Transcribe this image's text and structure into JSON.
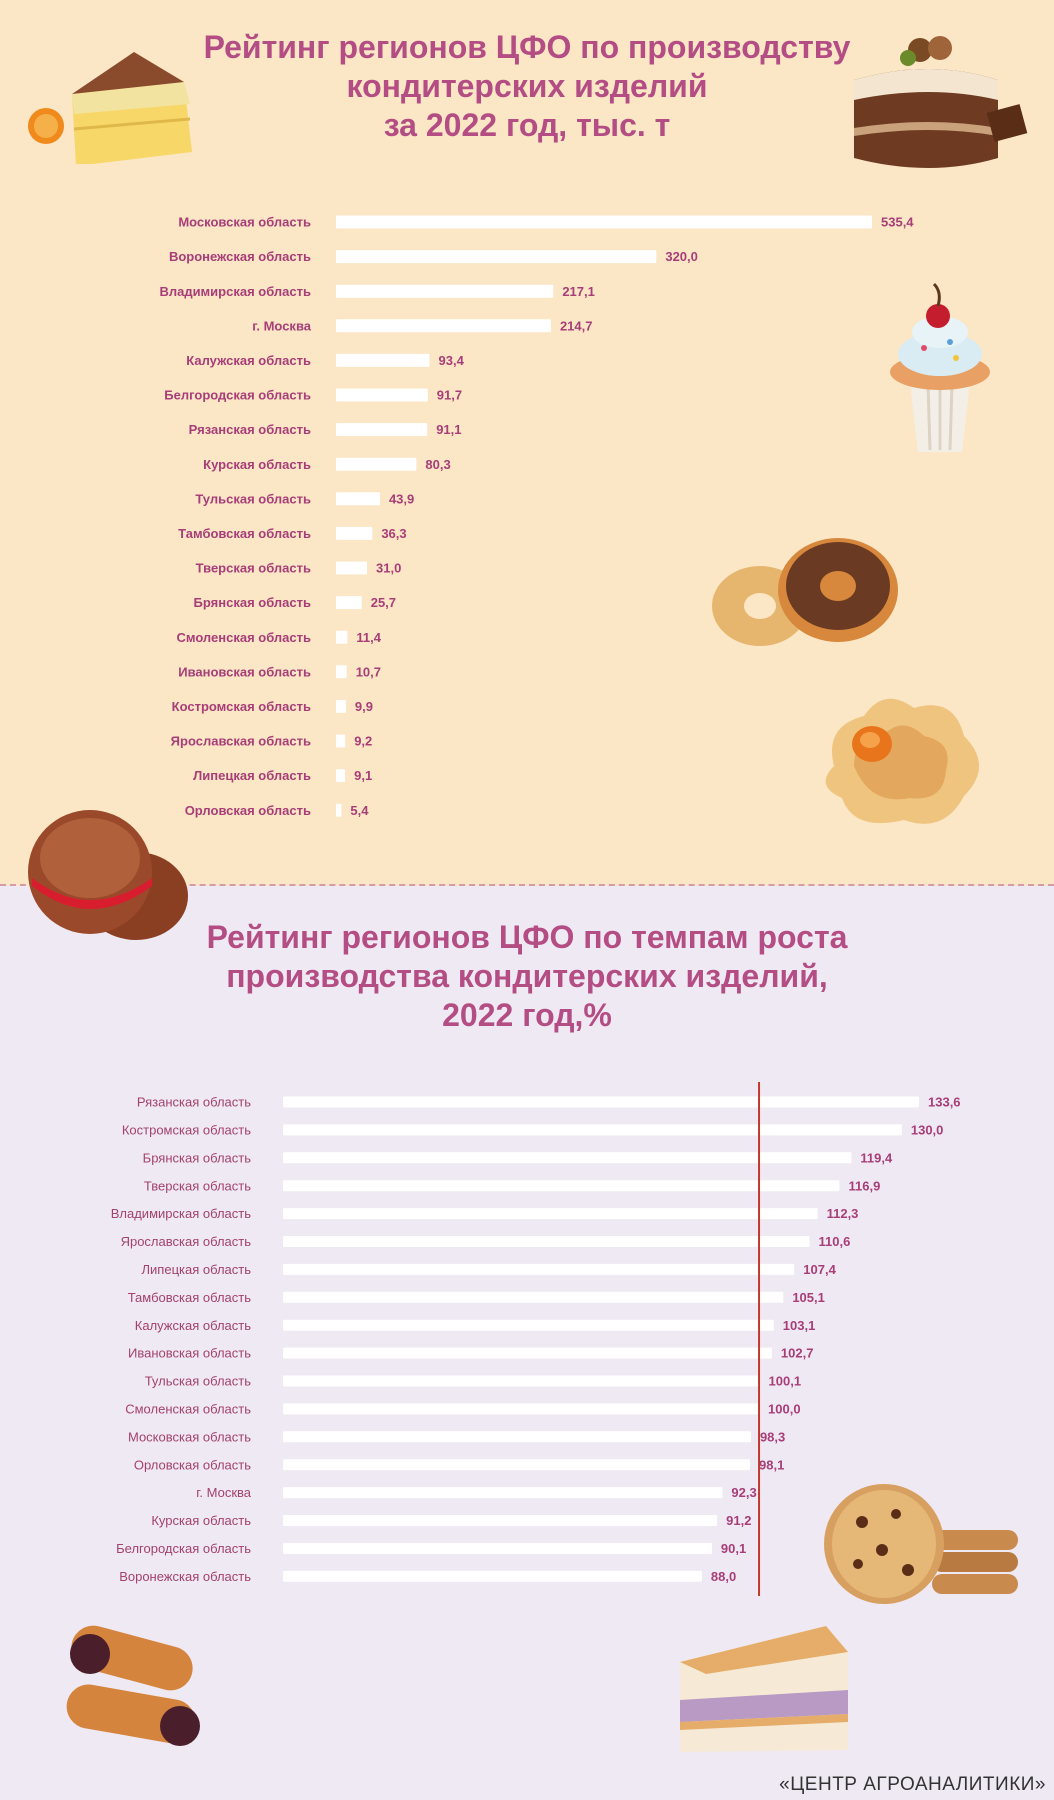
{
  "chart_data": [
    {
      "type": "bar",
      "orientation": "horizontal",
      "title_lines": [
        "Рейтинг регионов ЦФО по производству",
        "кондитерских изделий",
        "за 2022 год, тыс. т"
      ],
      "categories": [
        "Московская область",
        "Воронежская область",
        "Владимирская область",
        "г. Москва",
        "Калужская область",
        "Белгородская область",
        "Рязанская область",
        "Курская область",
        "Тульская область",
        "Тамбовская область",
        "Тверская область",
        "Брянская область",
        "Смоленская область",
        "Ивановская область",
        "Костромская область",
        "Ярославская область",
        "Липецкая область",
        "Орловская область"
      ],
      "values": [
        535.4,
        320.0,
        217.1,
        214.7,
        93.4,
        91.7,
        91.1,
        80.3,
        43.9,
        36.3,
        31.0,
        25.7,
        11.4,
        10.7,
        9.9,
        9.2,
        9.1,
        5.4
      ],
      "value_labels": [
        "535,4",
        "320,0",
        "217,1",
        "214,7",
        "93,4",
        "91,7",
        "91,1",
        "80,3",
        "43,9",
        "36,3",
        "31,0",
        "25,7",
        "11,4",
        "10,7",
        "9,9",
        "9,2",
        "9,1",
        "5,4"
      ],
      "xlim": [
        0,
        535.4
      ]
    },
    {
      "type": "bar",
      "orientation": "horizontal",
      "title_lines": [
        "Рейтинг регионов ЦФО по темпам роста",
        "производства кондитерских изделий,",
        "2022 год,%"
      ],
      "categories": [
        "Рязанская область",
        "Костромская область",
        "Брянская область",
        "Тверская область",
        "Владимирская область",
        "Ярославская область",
        "Липецкая область",
        "Тамбовская область",
        "Калужская область",
        "Ивановская область",
        "Тульская область",
        "Смоленская область",
        "Московская область",
        "Орловская область",
        "г. Москва",
        "Курская область",
        "Белгородская область",
        "Воронежская область"
      ],
      "values": [
        133.6,
        130.0,
        119.4,
        116.9,
        112.3,
        110.6,
        107.4,
        105.1,
        103.1,
        102.7,
        100.1,
        100.0,
        98.3,
        98.1,
        92.3,
        91.2,
        90.1,
        88.0
      ],
      "value_labels": [
        "133,6",
        "130,0",
        "119,4",
        "116,9",
        "112,3",
        "110,6",
        "107,4",
        "105,1",
        "103,1",
        "102,7",
        "100,1",
        "100,0",
        "98,3",
        "98,1",
        "92,3",
        "91,2",
        "90,1",
        "88,0"
      ],
      "xlim": [
        0,
        133.6
      ],
      "reference_line": 100,
      "reference_color": "#c0392b"
    }
  ],
  "footer": "«ЦЕНТР АГРОАНАЛИТИКИ»",
  "colors": {
    "title": "#b34d84",
    "top_background": "#fbe6c6",
    "bottom_background": "#efe9f3",
    "bar": "#ffffff",
    "top_label": "#a83e78",
    "bottom_label": "#a3426f"
  }
}
